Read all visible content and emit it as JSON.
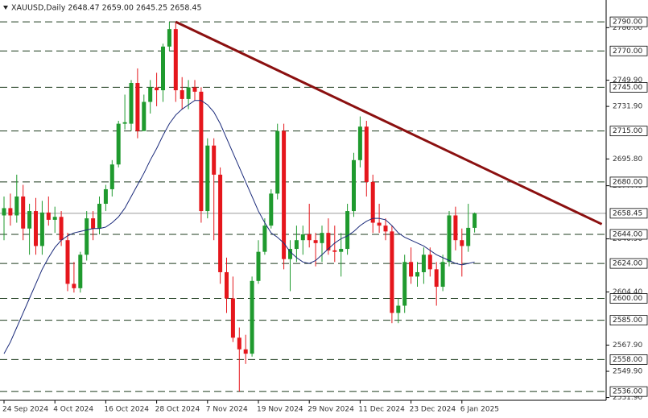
{
  "chart_data": {
    "type": "candlestick",
    "title": "XAUUSD,Daily  2648.47 2659.00 2645.25 2658.45",
    "categories": [
      "24 Sep 2024",
      null,
      null,
      null,
      null,
      null,
      null,
      null,
      "4 Oct 2024",
      null,
      null,
      null,
      null,
      null,
      null,
      null,
      "16 Oct 2024",
      null,
      null,
      null,
      null,
      null,
      null,
      null,
      "28 Oct 2024",
      null,
      null,
      null,
      null,
      null,
      null,
      null,
      "7 Nov 2024",
      null,
      null,
      null,
      null,
      null,
      null,
      null,
      "19 Nov 2024",
      null,
      null,
      null,
      null,
      null,
      null,
      null,
      "29 Nov 2024",
      null,
      null,
      null,
      null,
      null,
      null,
      null,
      "11 Dec 2024",
      null,
      null,
      null,
      null,
      null,
      null,
      null,
      "23 Dec 2024",
      null,
      null,
      null,
      null,
      null,
      null,
      null,
      "6 Jan 2025",
      null,
      null
    ],
    "open": [
      2657,
      2662,
      2657,
      2670,
      2648,
      2660,
      2636,
      2659,
      2654,
      2656,
      2640,
      2610,
      2607,
      2630,
      2655,
      2648,
      2665,
      2675,
      2692,
      2720,
      2720,
      2748,
      2715,
      2735,
      2745,
      2743,
      2773,
      2785,
      2743,
      2737,
      2745,
      2742,
      2660,
      2705,
      2685,
      2618,
      2600,
      2573,
      2565,
      2562,
      2612,
      2632,
      2650,
      2672,
      2715,
      2627,
      2634,
      2640,
      2644,
      2640,
      2638,
      2645,
      2633,
      2632,
      2634,
      2660,
      2695,
      2718,
      2680,
      2652,
      2650,
      2646,
      2590,
      2595,
      2625,
      2615,
      2618,
      2630,
      2620,
      2608,
      2625,
      2657,
      2640,
      2636,
      2648.47
    ],
    "high": [
      2670,
      2672,
      2685,
      2678,
      2665,
      2669,
      2667,
      2670,
      2663,
      2660,
      2645,
      2625,
      2632,
      2660,
      2660,
      2670,
      2678,
      2695,
      2722,
      2740,
      2750,
      2758,
      2740,
      2750,
      2755,
      2775,
      2790,
      2790,
      2752,
      2750,
      2750,
      2745,
      2710,
      2710,
      2690,
      2628,
      2615,
      2580,
      2575,
      2615,
      2640,
      2655,
      2675,
      2720,
      2720,
      2640,
      2650,
      2650,
      2665,
      2645,
      2650,
      2655,
      2650,
      2645,
      2665,
      2700,
      2725,
      2722,
      2685,
      2665,
      2655,
      2650,
      2600,
      2630,
      2635,
      2625,
      2635,
      2635,
      2625,
      2630,
      2660,
      2663,
      2648,
      2665,
      2659
    ],
    "low": [
      2640,
      2650,
      2652,
      2640,
      2630,
      2630,
      2630,
      2650,
      2645,
      2636,
      2605,
      2604,
      2604,
      2626,
      2640,
      2644,
      2660,
      2670,
      2690,
      2716,
      2715,
      2710,
      2715,
      2727,
      2732,
      2735,
      2770,
      2735,
      2730,
      2730,
      2736,
      2652,
      2655,
      2640,
      2610,
      2590,
      2570,
      2536,
      2555,
      2560,
      2610,
      2630,
      2648,
      2668,
      2620,
      2605,
      2625,
      2630,
      2635,
      2622,
      2625,
      2630,
      2625,
      2615,
      2630,
      2656,
      2690,
      2670,
      2645,
      2645,
      2640,
      2583,
      2583,
      2590,
      2610,
      2608,
      2610,
      2615,
      2595,
      2605,
      2622,
      2633,
      2615,
      2632,
      2645.25
    ],
    "close": [
      2662,
      2657,
      2670,
      2648,
      2660,
      2636,
      2659,
      2654,
      2656,
      2640,
      2610,
      2607,
      2630,
      2655,
      2648,
      2665,
      2675,
      2692,
      2720,
      2721,
      2748,
      2715,
      2735,
      2745,
      2743,
      2773,
      2785,
      2743,
      2737,
      2745,
      2742,
      2660,
      2705,
      2685,
      2618,
      2600,
      2573,
      2565,
      2562,
      2612,
      2632,
      2650,
      2672,
      2715,
      2627,
      2634,
      2640,
      2644,
      2640,
      2638,
      2645,
      2633,
      2632,
      2634,
      2660,
      2695,
      2718,
      2680,
      2652,
      2650,
      2646,
      2590,
      2595,
      2625,
      2615,
      2618,
      2630,
      2620,
      2608,
      2625,
      2657,
      2640,
      2636,
      2648.47,
      2658.45
    ],
    "up_color": "#1f9a2e",
    "down_color": "#e5161c",
    "ma": {
      "color": "#1a2a7a",
      "values": [
        2562,
        2570,
        2580,
        2590,
        2600,
        2610,
        2620,
        2628,
        2635,
        2640,
        2643,
        2645,
        2646,
        2647,
        2648,
        2648,
        2649,
        2652,
        2656,
        2662,
        2670,
        2678,
        2686,
        2695,
        2703,
        2712,
        2720,
        2726,
        2730,
        2733,
        2736,
        2736,
        2733,
        2728,
        2720,
        2710,
        2700,
        2690,
        2680,
        2670,
        2660,
        2652,
        2645,
        2642,
        2638,
        2632,
        2628,
        2625,
        2624,
        2626,
        2630,
        2634,
        2638,
        2641,
        2643,
        2646,
        2650,
        2653,
        2655,
        2655,
        2654,
        2650,
        2645,
        2642,
        2640,
        2638,
        2636,
        2633,
        2630,
        2628,
        2626,
        2624,
        2623,
        2624,
        2625
      ]
    },
    "trendline": {
      "color": "#8b1010",
      "points": [
        [
          27,
          2790
        ],
        [
          94,
          2651
        ]
      ]
    },
    "levels": [
      {
        "value": 2790,
        "label": "2790.00"
      },
      {
        "value": 2770,
        "label": "2770.00"
      },
      {
        "value": 2745,
        "label": "2745.00"
      },
      {
        "value": 2715,
        "label": "2715.00"
      },
      {
        "value": 2680,
        "label": "2680.00"
      },
      {
        "value": 2644,
        "label": "2644.00"
      },
      {
        "value": 2624,
        "label": "2624.00"
      },
      {
        "value": 2600,
        "label": "2600.00"
      },
      {
        "value": 2585,
        "label": "2585.00"
      },
      {
        "value": 2558,
        "label": "2558.00"
      },
      {
        "value": 2536,
        "label": "2536.00"
      }
    ],
    "current_price": {
      "value": 2658.45,
      "label": "2658.45"
    },
    "ylim": [
      2530,
      2805
    ],
    "yticks": [
      {
        "value": 2786,
        "label": "2786.00"
      },
      {
        "value": 2749.9,
        "label": "2749.90"
      },
      {
        "value": 2731.9,
        "label": "2731.90"
      },
      {
        "value": 2695.8,
        "label": "2695.80"
      },
      {
        "value": 2677.4,
        "label": "2677.40"
      },
      {
        "value": 2640.9,
        "label": "2640.90"
      },
      {
        "value": 2604.4,
        "label": "2604.40"
      },
      {
        "value": 2567.9,
        "label": "2567.90"
      },
      {
        "value": 2549.9,
        "label": "2549.90"
      },
      {
        "value": 2531.9,
        "label": "2531.90"
      }
    ]
  }
}
